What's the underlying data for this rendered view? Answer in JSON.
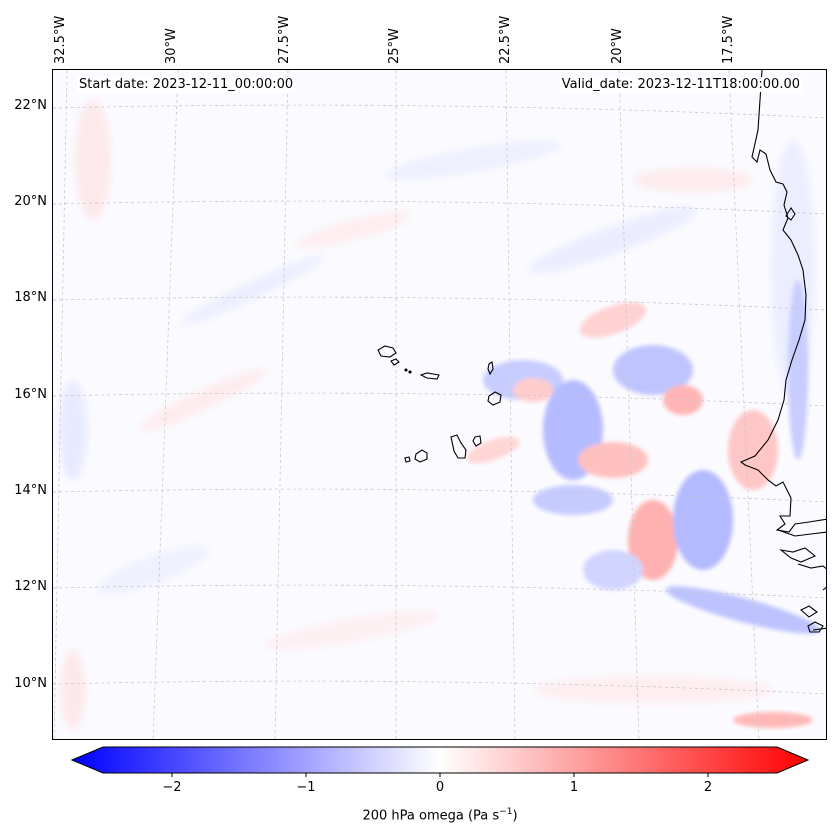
{
  "header": {
    "start_date": "Start date: 2023-12-11_00:00:00",
    "valid_date": "Valid_date: 2023-12-11T18:00:00.00"
  },
  "axes": {
    "longitude_labels": [
      "32.5°W",
      "30°W",
      "27.5°W",
      "25°W",
      "22.5°W",
      "20°W",
      "17.5°W"
    ],
    "latitude_labels": [
      "22°N",
      "20°N",
      "18°N",
      "16°N",
      "14°N",
      "12°N",
      "10°N"
    ]
  },
  "colorbar": {
    "tick_labels": [
      "−2",
      "−1",
      "0",
      "1",
      "2"
    ],
    "label_main": "200 hPa omega (Pa s",
    "label_sup": "−1",
    "label_end": ")",
    "colors": {
      "neg_end": "#0000ff",
      "mid": "#ffffff",
      "pos_end": "#ff0000"
    }
  }
}
